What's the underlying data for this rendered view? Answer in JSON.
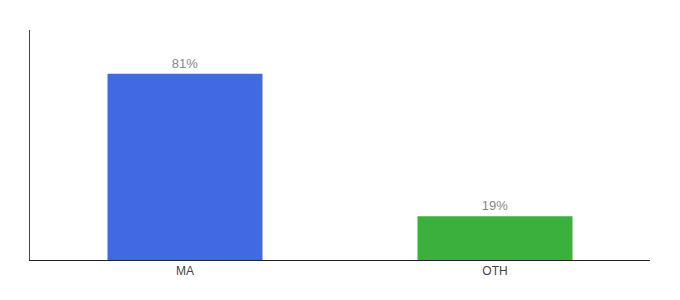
{
  "chart_data": {
    "type": "bar",
    "categories": [
      "MA",
      "OTH"
    ],
    "values": [
      81,
      19
    ],
    "value_labels": [
      "81%",
      "19%"
    ],
    "colors": [
      "#4169e1",
      "#3cb03c"
    ],
    "ylim": [
      0,
      100
    ],
    "data_labels": true,
    "tick_labels": "x",
    "grid": false
  }
}
